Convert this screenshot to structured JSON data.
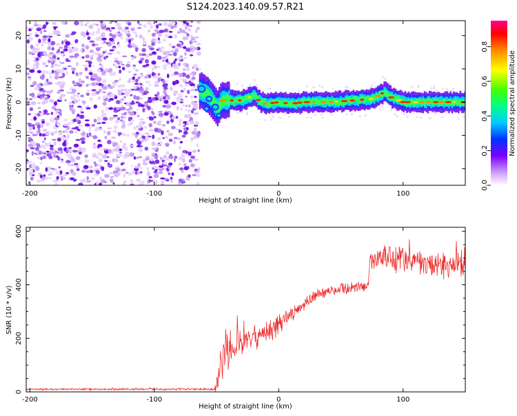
{
  "title": "S124.2023.140.09.57.R21",
  "chart_data": [
    {
      "type": "heatmap",
      "xlabel": "Height of straight line (km)",
      "ylabel": "Frequency (Hz)",
      "xlim": [
        -203,
        150
      ],
      "ylim": [
        -25,
        24.5
      ],
      "xticks": [
        -200,
        -100,
        0,
        100
      ],
      "yticks": [
        -20,
        -10,
        0,
        10,
        20
      ],
      "colorbar": {
        "label": "Normalized spectral amplitude",
        "range": [
          0,
          0.95
        ],
        "ticks": [
          0.0,
          0.2,
          0.4,
          0.6,
          0.8
        ]
      },
      "noise_region_x": [
        -203,
        -64
      ],
      "signal_ridge": {
        "x": [
          -64,
          -58,
          -54,
          -50,
          -46,
          -40,
          -30,
          -20,
          -15,
          -10,
          0,
          10,
          20,
          40,
          60,
          75,
          80,
          85,
          90,
          100,
          120,
          150
        ],
        "freq": [
          3.5,
          2.5,
          0.5,
          -2,
          0.5,
          0.5,
          0.5,
          2,
          0,
          -0.5,
          0,
          -0.5,
          0,
          0,
          0.5,
          1,
          2,
          3,
          1.5,
          0,
          0,
          0
        ]
      }
    },
    {
      "type": "line",
      "xlabel": "Height of straight line (km)",
      "ylabel": "SNR (10 * v/v)",
      "xlim": [
        -203,
        150
      ],
      "ylim": [
        0,
        615
      ],
      "xticks": [
        -200,
        -100,
        0,
        100
      ],
      "yticks": [
        0,
        200,
        400,
        600
      ],
      "color": "#ee2a2a",
      "envelope": {
        "x": [
          -203,
          -52,
          -50,
          -45,
          -40,
          -30,
          -20,
          -10,
          0,
          10,
          20,
          30,
          40,
          50,
          60,
          72,
          73,
          90,
          110,
          130,
          150
        ],
        "mean": [
          10,
          10,
          40,
          120,
          160,
          190,
          210,
          230,
          250,
          290,
          330,
          360,
          375,
          385,
          390,
          395,
          490,
          500,
          490,
          470,
          480
        ],
        "spread": [
          4,
          4,
          60,
          90,
          80,
          70,
          60,
          50,
          40,
          30,
          25,
          20,
          20,
          20,
          20,
          20,
          40,
          60,
          50,
          50,
          50
        ]
      }
    }
  ]
}
